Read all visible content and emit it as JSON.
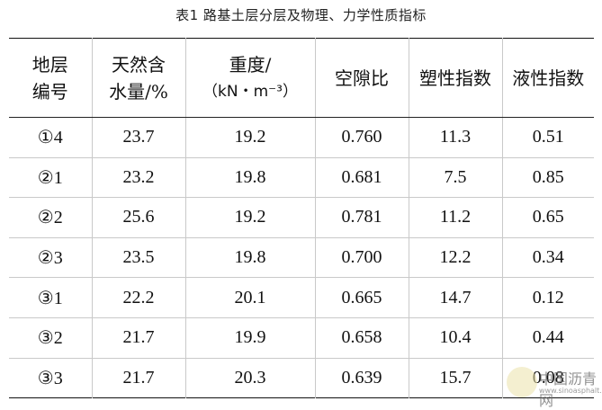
{
  "caption": "表1 路基土层分层及物理、力学性质指标",
  "headers": {
    "layer_no": [
      "地层",
      "编号"
    ],
    "moisture": [
      "天然含",
      "水量/%"
    ],
    "unit_weight": [
      "重度/",
      "（kN・m⁻³）"
    ],
    "void_ratio": "空隙比",
    "plasticity": "塑性指数",
    "liquidity": "液性指数"
  },
  "rows": [
    {
      "layer": "①4",
      "moisture": "23.7",
      "unit_weight": "19.2",
      "void_ratio": "0.760",
      "plasticity": "11.3",
      "liquidity": "0.51"
    },
    {
      "layer": "②1",
      "moisture": "23.2",
      "unit_weight": "19.8",
      "void_ratio": "0.681",
      "plasticity": "7.5",
      "liquidity": "0.85"
    },
    {
      "layer": "②2",
      "moisture": "25.6",
      "unit_weight": "19.2",
      "void_ratio": "0.781",
      "plasticity": "11.2",
      "liquidity": "0.65"
    },
    {
      "layer": "②3",
      "moisture": "23.5",
      "unit_weight": "19.8",
      "void_ratio": "0.700",
      "plasticity": "12.2",
      "liquidity": "0.34"
    },
    {
      "layer": "③1",
      "moisture": "22.2",
      "unit_weight": "20.1",
      "void_ratio": "0.665",
      "plasticity": "14.7",
      "liquidity": "0.12"
    },
    {
      "layer": "③2",
      "moisture": "21.7",
      "unit_weight": "19.9",
      "void_ratio": "0.658",
      "plasticity": "10.4",
      "liquidity": "0.44"
    },
    {
      "layer": "③3",
      "moisture": "21.7",
      "unit_weight": "20.3",
      "void_ratio": "0.639",
      "plasticity": "15.7",
      "liquidity": "0.08"
    }
  ],
  "watermark": {
    "text": "中国沥青网",
    "url": "www.sinoasphalt.com"
  }
}
